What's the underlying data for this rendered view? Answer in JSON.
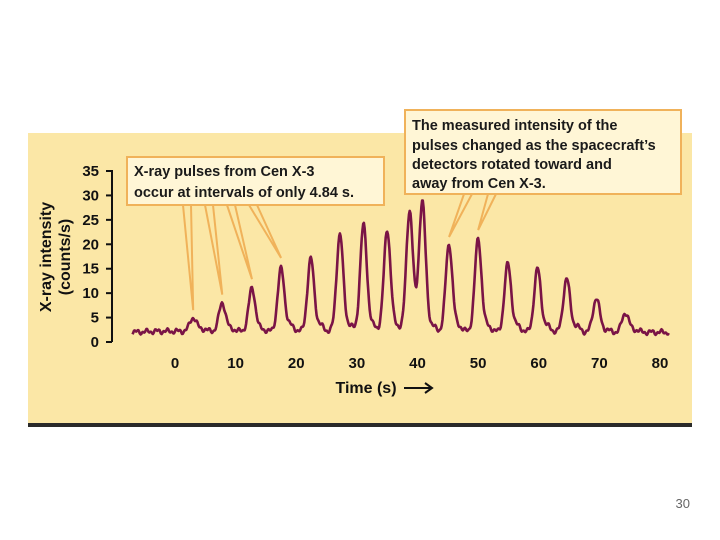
{
  "page_number": "30",
  "colors": {
    "panel": "#fbe7a6",
    "line": "#7a1446",
    "callout_border": "#f0b25a"
  },
  "chart_data": {
    "type": "line",
    "title": "",
    "xlabel": "Time (s)",
    "ylabel": [
      "X-ray intensity",
      "(counts/s)"
    ],
    "xlim": [
      -7,
      82
    ],
    "ylim": [
      0,
      35
    ],
    "xticks": [
      0,
      10,
      20,
      30,
      40,
      50,
      60,
      70,
      80
    ],
    "yticks": [
      0,
      5,
      10,
      15,
      20,
      25,
      30,
      35
    ],
    "pulse_interval_s": 4.84,
    "series": [
      {
        "name": "X-ray intensity",
        "baseline": [
          [
            -7,
            2.0
          ],
          [
            -3,
            2.2
          ],
          [
            0,
            2.2
          ],
          [
            80,
            2.0
          ],
          [
            82,
            2.0
          ]
        ],
        "pulses": [
          {
            "t": 3.0,
            "peak": 5
          },
          {
            "t": 7.8,
            "peak": 8
          },
          {
            "t": 12.7,
            "peak": 11
          },
          {
            "t": 17.5,
            "peak": 15
          },
          {
            "t": 22.4,
            "peak": 17
          },
          {
            "t": 27.2,
            "peak": 22
          },
          {
            "t": 31.1,
            "peak": 24
          },
          {
            "t": 35.0,
            "peak": 23
          },
          {
            "t": 38.7,
            "peak": 27
          },
          {
            "t": 40.8,
            "peak": 28
          },
          {
            "t": 45.2,
            "peak": 20
          },
          {
            "t": 50.0,
            "peak": 21
          },
          {
            "t": 54.9,
            "peak": 16
          },
          {
            "t": 59.8,
            "peak": 15
          },
          {
            "t": 64.6,
            "peak": 13
          },
          {
            "t": 69.5,
            "peak": 9
          },
          {
            "t": 74.3,
            "peak": 6
          }
        ]
      }
    ],
    "annotations": [
      {
        "lines": [
          "X-ray pulses from Cen X-3",
          "occur at intervals of only 4.84 s."
        ],
        "points_to_t": [
          3.0,
          7.8,
          12.7,
          17.5
        ]
      },
      {
        "lines": [
          "The measured intensity of the",
          "pulses changed as the spacecraft’s",
          "detectors rotated toward and",
          "away from Cen X-3."
        ],
        "points_to_t": [
          45.2,
          50.0
        ]
      }
    ]
  }
}
